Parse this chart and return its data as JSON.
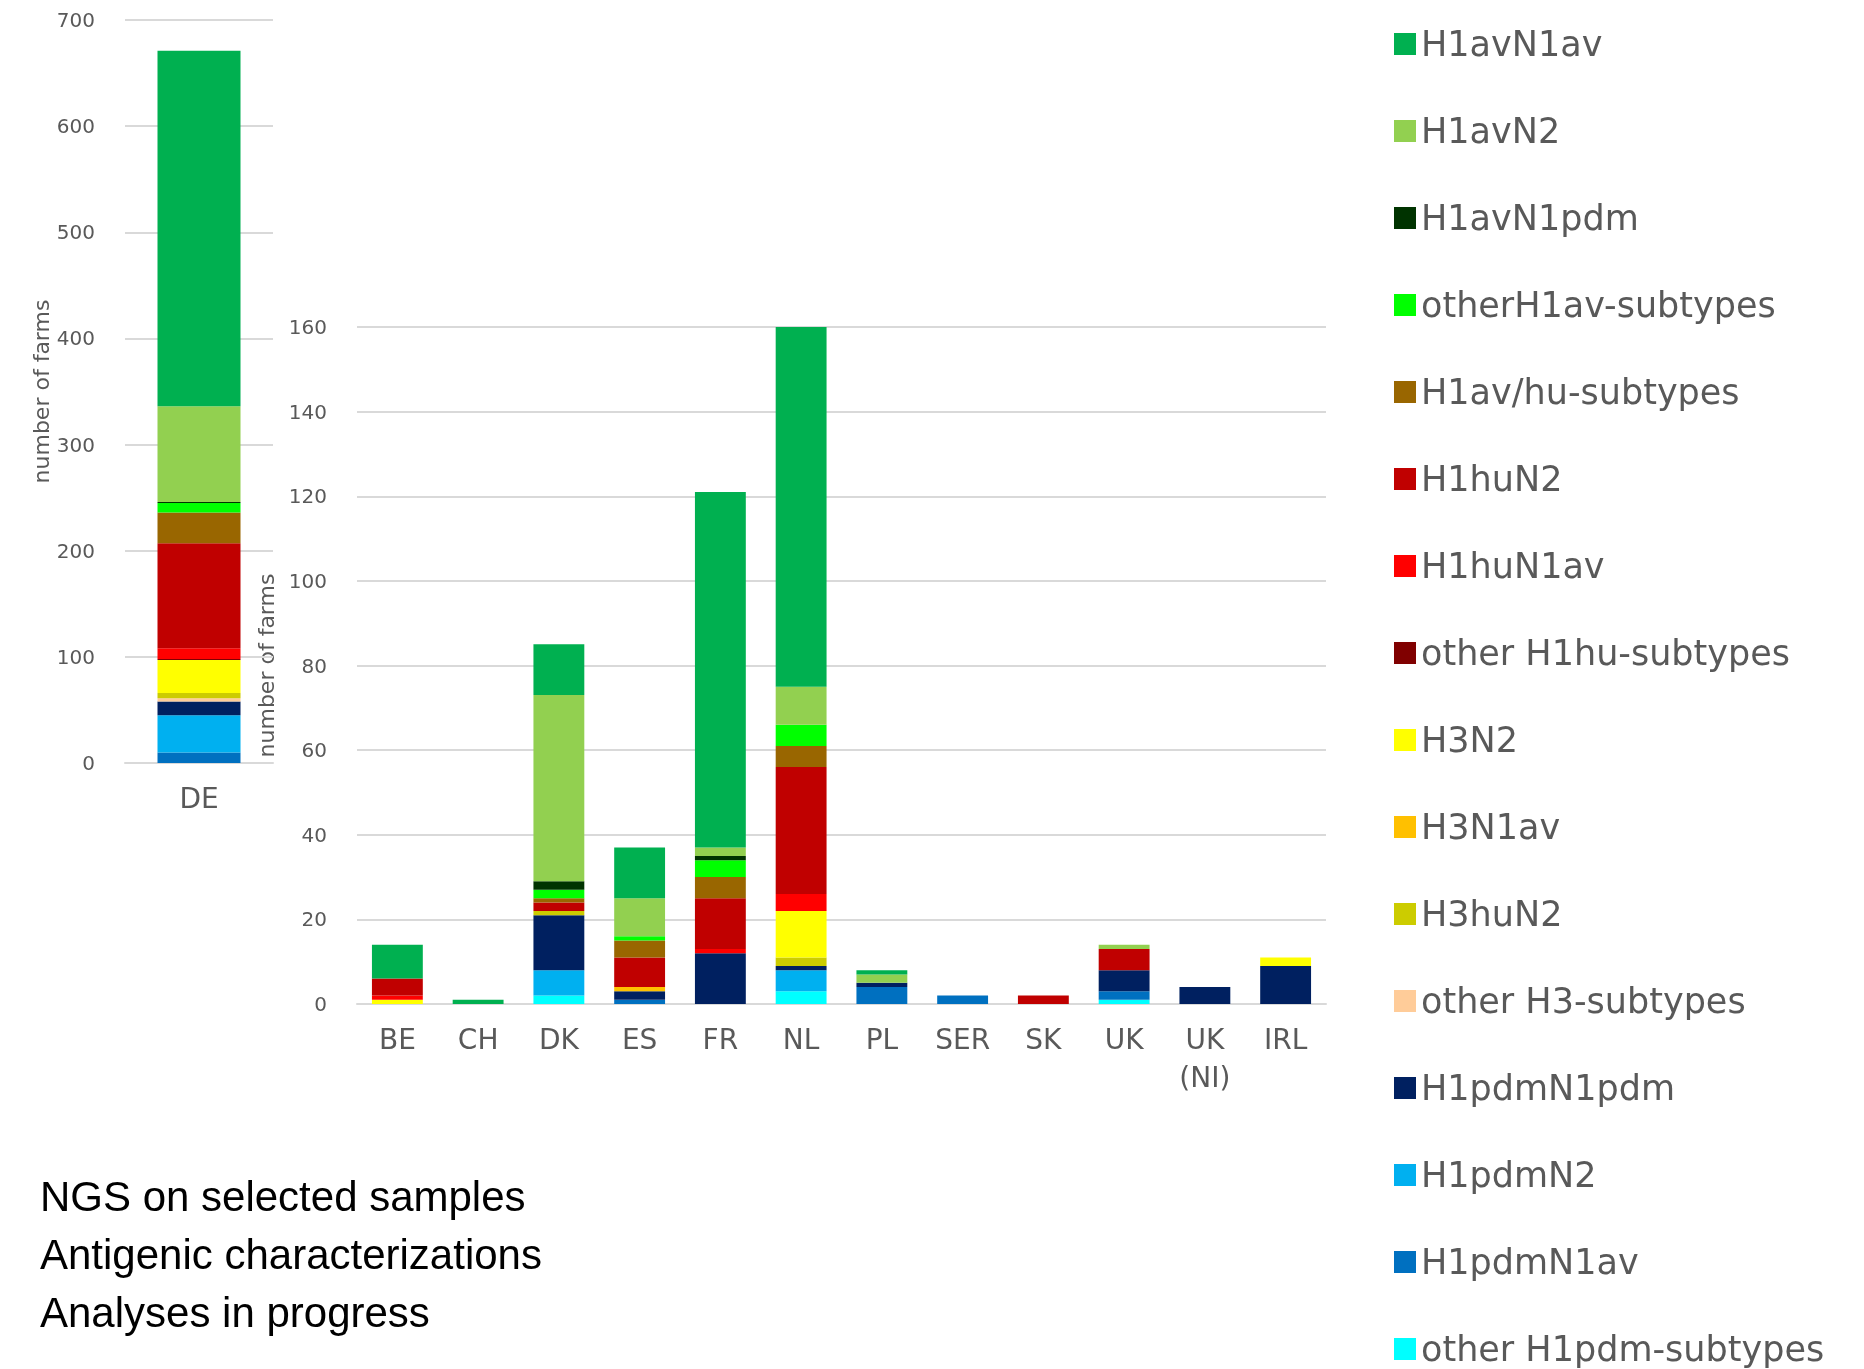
{
  "chart_data": [
    {
      "type": "bar",
      "stacked": true,
      "ylabel": "number of farms",
      "categories": [
        "DE"
      ],
      "ylim": [
        0,
        700
      ],
      "yticks": [
        0,
        100,
        200,
        300,
        400,
        500,
        600,
        700
      ],
      "grid": "y",
      "legend": false,
      "series": [
        {
          "color": "#00ffff",
          "values": [
            0
          ]
        },
        {
          "color": "#0070c0",
          "values": [
            10
          ]
        },
        {
          "color": "#00b0f0",
          "values": [
            35
          ]
        },
        {
          "color": "#002060",
          "values": [
            13
          ]
        },
        {
          "color": "#ffcc99",
          "values": [
            3
          ]
        },
        {
          "color": "#cccc00",
          "values": [
            5
          ]
        },
        {
          "color": "#ffc000",
          "values": [
            0
          ]
        },
        {
          "color": "#ffff00",
          "values": [
            31
          ]
        },
        {
          "color": "#800000",
          "values": [
            1
          ]
        },
        {
          "color": "#ff0000",
          "values": [
            10
          ]
        },
        {
          "color": "#c00000",
          "values": [
            99
          ]
        },
        {
          "color": "#996600",
          "values": [
            29
          ]
        },
        {
          "color": "#00ff00",
          "values": [
            9
          ]
        },
        {
          "color": "#003300",
          "values": [
            1
          ]
        },
        {
          "color": "#92d050",
          "values": [
            90
          ]
        },
        {
          "color": "#00b050",
          "values": [
            335
          ]
        }
      ]
    },
    {
      "type": "bar",
      "stacked": true,
      "ylabel": "number of farms",
      "categories": [
        "BE",
        "CH",
        "DK",
        "ES",
        "FR",
        "NL",
        "PL",
        "SER",
        "SK",
        "UK",
        "UK\n(NI)",
        "IRL"
      ],
      "ylim": [
        0,
        160
      ],
      "yticks": [
        0,
        20,
        40,
        60,
        80,
        100,
        120,
        140,
        160
      ],
      "grid": "y",
      "legend": "right",
      "annotations": [
        "NGS on selected samples",
        "Antigenic characterizations",
        "Analyses in progress"
      ],
      "series": [
        {
          "name": "other H1pdm-subtypes",
          "color": "#00ffff",
          "values": [
            0,
            0,
            2,
            0,
            0,
            3,
            0,
            0,
            0,
            1,
            0,
            0
          ]
        },
        {
          "name": "H1pdmN1av",
          "color": "#0070c0",
          "values": [
            0,
            0,
            0,
            1,
            0,
            0,
            4,
            2,
            0,
            2,
            0,
            0
          ]
        },
        {
          "name": "H1pdmN2",
          "color": "#00b0f0",
          "values": [
            0,
            0,
            6,
            0,
            0,
            5,
            0,
            0,
            0,
            0,
            0,
            0
          ]
        },
        {
          "name": "H1pdmN1pdm",
          "color": "#002060",
          "values": [
            0,
            0,
            13,
            2,
            12,
            1,
            1,
            0,
            0,
            5,
            4,
            9
          ]
        },
        {
          "name": "other H3-subtypes",
          "color": "#ffcc99",
          "values": [
            0,
            0,
            0,
            0,
            0,
            0,
            0,
            0,
            0,
            0,
            0,
            0
          ]
        },
        {
          "name": "H3huN2",
          "color": "#cccc00",
          "values": [
            0,
            0,
            1,
            0,
            0,
            2,
            0,
            0,
            0,
            0,
            0,
            0
          ]
        },
        {
          "name": "H3N1av",
          "color": "#ffc000",
          "values": [
            0,
            0,
            0,
            1,
            0,
            0,
            0,
            0,
            0,
            0,
            0,
            0
          ]
        },
        {
          "name": "H3N2",
          "color": "#ffff00",
          "values": [
            1,
            0,
            0,
            0,
            0,
            11,
            0,
            0,
            0,
            0,
            0,
            2
          ]
        },
        {
          "name": "other H1hu-subtypes",
          "color": "#800000",
          "values": [
            0,
            0,
            0,
            0,
            0,
            0,
            0,
            0,
            0,
            0,
            0,
            0
          ]
        },
        {
          "name": "H1huN1av",
          "color": "#ff0000",
          "values": [
            1,
            0,
            0,
            0,
            1,
            4,
            0,
            0,
            0,
            0,
            0,
            0
          ]
        },
        {
          "name": "H1huN2",
          "color": "#c00000",
          "values": [
            4,
            0,
            2,
            7,
            12,
            30,
            0,
            0,
            2,
            5,
            0,
            0
          ]
        },
        {
          "name": "H1av/hu-subtypes",
          "color": "#996600",
          "values": [
            0,
            0,
            1,
            4,
            5,
            5,
            0,
            0,
            0,
            0,
            0,
            0
          ]
        },
        {
          "name": "otherH1av-subtypes",
          "color": "#00ff00",
          "values": [
            0,
            0,
            2,
            1,
            4,
            5,
            0,
            0,
            0,
            0,
            0,
            0
          ]
        },
        {
          "name": "H1avN1pdm",
          "color": "#003300",
          "values": [
            0,
            0,
            2,
            0,
            1,
            0,
            0,
            0,
            0,
            0,
            0,
            0
          ]
        },
        {
          "name": "H1avN2",
          "color": "#92d050",
          "values": [
            0,
            0,
            44,
            9,
            2,
            9,
            2,
            0,
            0,
            1,
            0,
            0
          ]
        },
        {
          "name": "H1avN1av",
          "color": "#00b050",
          "values": [
            8,
            1,
            12,
            12,
            84,
            85,
            1,
            0,
            0,
            0,
            0,
            0
          ]
        }
      ]
    }
  ]
}
